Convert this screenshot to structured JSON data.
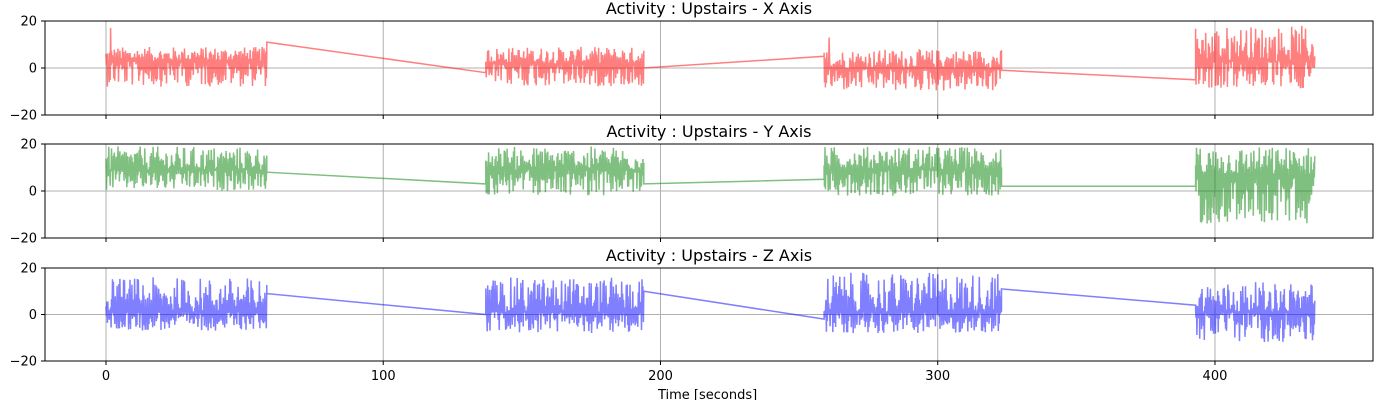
{
  "chart_data": [
    {
      "type": "line",
      "title": "Activity : Upstairs - X Axis",
      "color": "#ff0000",
      "alpha": 0.5,
      "xlim": [
        -22,
        457
      ],
      "ylim": [
        -20,
        20
      ],
      "yticks": [
        -20,
        0,
        20
      ],
      "xticks": [
        0,
        100,
        200,
        300,
        400
      ],
      "show_xticklabels": false,
      "grid": true,
      "segments": [
        {
          "x_start": 0,
          "x_end": 58,
          "center": 3,
          "amp_low": -8,
          "amp_high": 9,
          "max_spike": 17
        },
        {
          "x_start": 137,
          "x_end": 194,
          "center": 2,
          "amp_low": -8,
          "amp_high": 9
        },
        {
          "x_start": 259,
          "x_end": 323,
          "center": 0,
          "amp_low": -10,
          "amp_high": 8,
          "max_spike": 13
        },
        {
          "x_start": 393,
          "x_end": 436,
          "center": 3,
          "amp_low": -9,
          "amp_high": 18
        }
      ],
      "connectors": [
        [
          58,
          11,
          137,
          -2
        ],
        [
          194,
          0,
          259,
          5
        ],
        [
          323,
          -1,
          393,
          -5
        ]
      ]
    },
    {
      "type": "line",
      "title": "Activity : Upstairs - Y Axis",
      "color": "#008000",
      "alpha": 0.5,
      "xlim": [
        -22,
        457
      ],
      "ylim": [
        -20,
        20
      ],
      "yticks": [
        -20,
        0,
        20
      ],
      "xticks": [
        0,
        100,
        200,
        300,
        400
      ],
      "show_xticklabels": false,
      "grid": true,
      "segments": [
        {
          "x_start": 0,
          "x_end": 58,
          "center": 9,
          "amp_low": 0,
          "amp_high": 19
        },
        {
          "x_start": 137,
          "x_end": 194,
          "center": 9,
          "amp_low": -2,
          "amp_high": 19
        },
        {
          "x_start": 259,
          "x_end": 323,
          "center": 9,
          "amp_low": -2,
          "amp_high": 19
        },
        {
          "x_start": 393,
          "x_end": 436,
          "center": 7,
          "amp_low": -14,
          "amp_high": 19
        }
      ],
      "connectors": [
        [
          58,
          8,
          137,
          3
        ],
        [
          194,
          3,
          259,
          5
        ],
        [
          323,
          2,
          393,
          2
        ]
      ]
    },
    {
      "type": "line",
      "title": "Activity : Upstairs - Z Axis",
      "color": "#0000ff",
      "alpha": 0.5,
      "xlim": [
        -22,
        457
      ],
      "ylim": [
        -20,
        20
      ],
      "yticks": [
        -20,
        0,
        20
      ],
      "xticks": [
        0,
        100,
        200,
        300,
        400
      ],
      "show_xticklabels": true,
      "xlabel": "Time [seconds]",
      "grid": true,
      "segments": [
        {
          "x_start": 0,
          "x_end": 58,
          "center": 1,
          "amp_low": -7,
          "amp_high": 16
        },
        {
          "x_start": 137,
          "x_end": 194,
          "center": 1,
          "amp_low": -8,
          "amp_high": 16
        },
        {
          "x_start": 259,
          "x_end": 323,
          "center": 1,
          "amp_low": -8,
          "amp_high": 18
        },
        {
          "x_start": 393,
          "x_end": 436,
          "center": 1,
          "amp_low": -12,
          "amp_high": 14
        }
      ],
      "connectors": [
        [
          58,
          9,
          137,
          0
        ],
        [
          194,
          10,
          259,
          -2
        ],
        [
          323,
          11,
          393,
          4
        ]
      ]
    }
  ]
}
